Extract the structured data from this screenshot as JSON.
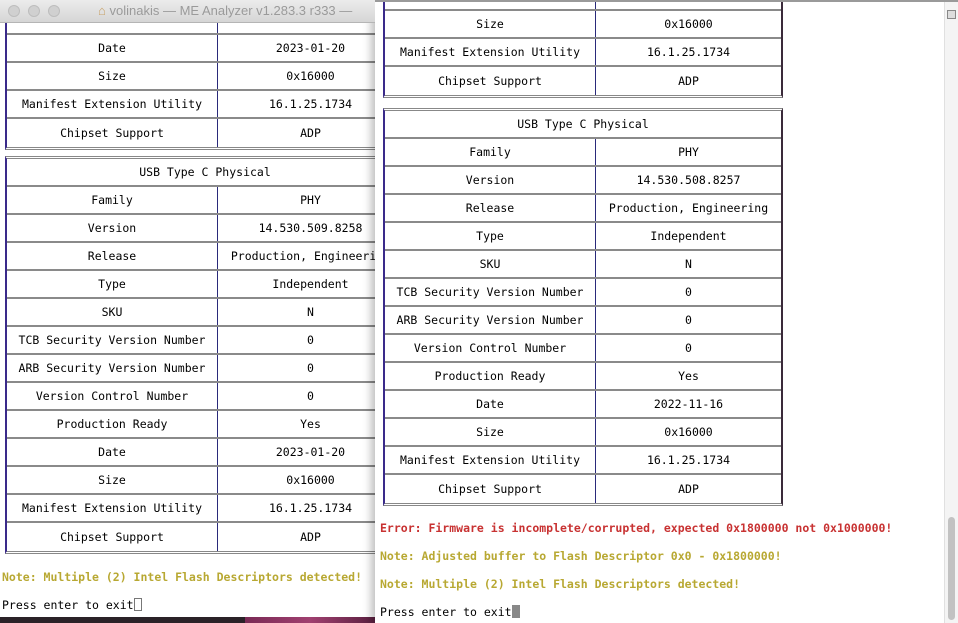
{
  "left_window": {
    "title": "volinakis — ME Analyzer v1.283.3 r333 — ",
    "tables": [
      {
        "header": null,
        "rows": [
          [
            "Date",
            "2023-01-20"
          ],
          [
            "Size",
            "0x16000"
          ],
          [
            "Manifest Extension Utility",
            "16.1.25.1734"
          ],
          [
            "Chipset Support",
            "ADP"
          ]
        ]
      },
      {
        "header": "USB Type C Physical",
        "rows": [
          [
            "Family",
            "PHY"
          ],
          [
            "Version",
            "14.530.509.8258"
          ],
          [
            "Release",
            "Production, Engineering"
          ],
          [
            "Type",
            "Independent"
          ],
          [
            "SKU",
            "N"
          ],
          [
            "TCB Security Version Number",
            "0"
          ],
          [
            "ARB Security Version Number",
            "0"
          ],
          [
            "Version Control Number",
            "0"
          ],
          [
            "Production Ready",
            "Yes"
          ],
          [
            "Date",
            "2023-01-20"
          ],
          [
            "Size",
            "0x16000"
          ],
          [
            "Manifest Extension Utility",
            "16.1.25.1734"
          ],
          [
            "Chipset Support",
            "ADP"
          ]
        ]
      }
    ],
    "messages": [
      {
        "type": "note",
        "text": "Note: Multiple (2) Intel Flash Descriptors detected!"
      }
    ],
    "prompt": "Press enter to exit"
  },
  "right_window": {
    "tables": [
      {
        "header": null,
        "rows": [
          [
            "Size",
            "0x16000"
          ],
          [
            "Manifest Extension Utility",
            "16.1.25.1734"
          ],
          [
            "Chipset Support",
            "ADP"
          ]
        ]
      },
      {
        "header": "USB Type C Physical",
        "rows": [
          [
            "Family",
            "PHY"
          ],
          [
            "Version",
            "14.530.508.8257"
          ],
          [
            "Release",
            "Production, Engineering"
          ],
          [
            "Type",
            "Independent"
          ],
          [
            "SKU",
            "N"
          ],
          [
            "TCB Security Version Number",
            "0"
          ],
          [
            "ARB Security Version Number",
            "0"
          ],
          [
            "Version Control Number",
            "0"
          ],
          [
            "Production Ready",
            "Yes"
          ],
          [
            "Date",
            "2022-11-16"
          ],
          [
            "Size",
            "0x16000"
          ],
          [
            "Manifest Extension Utility",
            "16.1.25.1734"
          ],
          [
            "Chipset Support",
            "ADP"
          ]
        ]
      }
    ],
    "messages": [
      {
        "type": "err",
        "text": "Error: Firmware is incomplete/corrupted, expected 0x1800000 not 0x1000000!"
      },
      {
        "type": "note",
        "text": "Note: Adjusted buffer to Flash Descriptor 0x0 - 0x1800000!"
      },
      {
        "type": "note",
        "text": "Note: Multiple (2) Intel Flash Descriptors detected!"
      }
    ],
    "prompt": "Press enter to exit"
  },
  "colors": {
    "error": "#c83232",
    "note": "#b8a832"
  }
}
